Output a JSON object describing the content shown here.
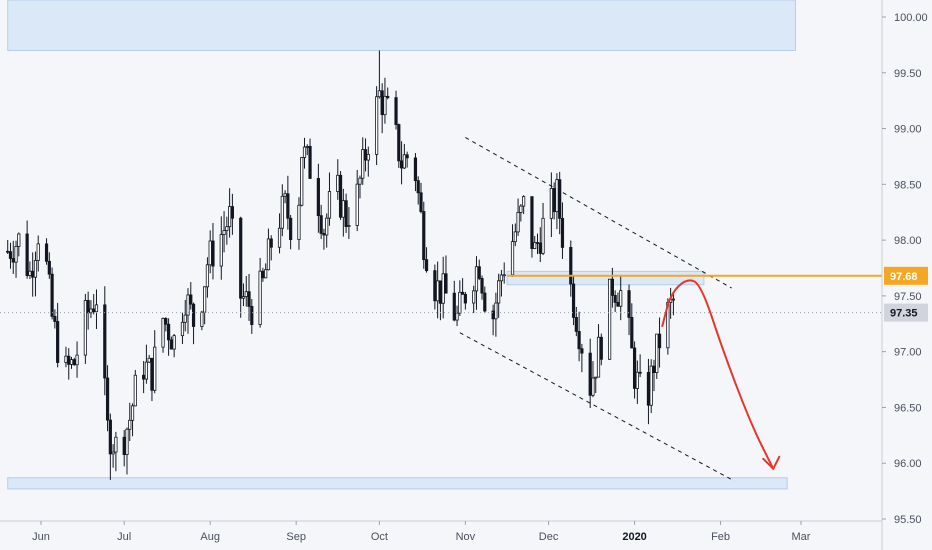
{
  "colors": {
    "background": "#f4f6f9",
    "zone_fill": "#dbe8f8",
    "zone_stroke": "#b5cde8",
    "candle": "#131722",
    "resistance": "#f5a623",
    "projection": "#e8352a",
    "current_tag": "#d1d4dc"
  },
  "chart_data": {
    "type": "candlestick",
    "title": "",
    "ylim": [
      95.5,
      100.2
    ],
    "y_ticks": [
      "100.00",
      "99.50",
      "99.00",
      "98.50",
      "98.00",
      "97.50",
      "97.00",
      "96.50",
      "96.00",
      "95.50"
    ],
    "y_tick_values": [
      100.0,
      99.5,
      99.0,
      98.5,
      98.0,
      97.5,
      97.0,
      96.5,
      96.0,
      95.5
    ],
    "x_months": [
      "Jun",
      "Jul",
      "Aug",
      "Sep",
      "Oct",
      "Nov",
      "Dec",
      "2020",
      "Feb",
      "Mar"
    ],
    "x_month_dates": [
      "2019-06-01",
      "2019-07-01",
      "2019-08-01",
      "2019-09-01",
      "2019-10-01",
      "2019-11-01",
      "2019-12-01",
      "2020-01-01",
      "2020-02-01",
      "2020-03-01"
    ],
    "x_range": [
      "2019-05-20",
      "2020-03-10"
    ],
    "price_path": [
      [
        "2019-05-20",
        97.9
      ],
      [
        "2019-05-24",
        98.0
      ],
      [
        "2019-05-28",
        97.7
      ],
      [
        "2019-06-01",
        98.2
      ],
      [
        "2019-06-05",
        97.3
      ],
      [
        "2019-06-09",
        96.8
      ],
      [
        "2019-06-13",
        96.9
      ],
      [
        "2019-06-17",
        97.3
      ],
      [
        "2019-06-21",
        97.5
      ],
      [
        "2019-06-25",
        96.3
      ],
      [
        "2019-06-29",
        96.1
      ],
      [
        "2019-07-03",
        96.4
      ],
      [
        "2019-07-07",
        96.9
      ],
      [
        "2019-07-11",
        96.8
      ],
      [
        "2019-07-15",
        97.3
      ],
      [
        "2019-07-19",
        97.1
      ],
      [
        "2019-07-23",
        97.5
      ],
      [
        "2019-07-27",
        97.2
      ],
      [
        "2019-07-31",
        97.8
      ],
      [
        "2019-08-04",
        98.0
      ],
      [
        "2019-08-08",
        98.2
      ],
      [
        "2019-08-12",
        97.5
      ],
      [
        "2019-08-16",
        97.4
      ],
      [
        "2019-08-20",
        97.6
      ],
      [
        "2019-08-24",
        98.1
      ],
      [
        "2019-08-28",
        98.3
      ],
      [
        "2019-09-01",
        98.0
      ],
      [
        "2019-09-03",
        98.8
      ],
      [
        "2019-09-07",
        98.6
      ],
      [
        "2019-09-11",
        98.1
      ],
      [
        "2019-09-15",
        98.5
      ],
      [
        "2019-09-19",
        98.2
      ],
      [
        "2019-09-23",
        98.4
      ],
      [
        "2019-09-27",
        98.9
      ],
      [
        "2019-10-01",
        99.3
      ],
      [
        "2019-10-05",
        99.1
      ],
      [
        "2019-10-09",
        98.7
      ],
      [
        "2019-10-13",
        98.8
      ],
      [
        "2019-10-17",
        98.0
      ],
      [
        "2019-10-21",
        97.6
      ],
      [
        "2019-10-25",
        97.5
      ],
      [
        "2019-10-29",
        97.3
      ],
      [
        "2019-11-02",
        97.6
      ],
      [
        "2019-11-06",
        97.8
      ],
      [
        "2019-11-10",
        97.2
      ],
      [
        "2019-11-14",
        97.7
      ],
      [
        "2019-11-18",
        98.0
      ],
      [
        "2019-11-22",
        98.3
      ],
      [
        "2019-11-26",
        97.9
      ],
      [
        "2019-11-30",
        98.2
      ],
      [
        "2019-12-04",
        98.4
      ],
      [
        "2019-12-08",
        97.7
      ],
      [
        "2019-12-12",
        97.2
      ],
      [
        "2019-12-16",
        96.7
      ],
      [
        "2019-12-20",
        97.1
      ],
      [
        "2019-12-24",
        97.6
      ],
      [
        "2019-12-28",
        97.5
      ],
      [
        "2020-01-01",
        96.8
      ],
      [
        "2020-01-05",
        96.5
      ],
      [
        "2020-01-08",
        96.9
      ],
      [
        "2020-01-12",
        97.3
      ],
      [
        "2020-01-15",
        97.45
      ]
    ],
    "high_low_extremes": [
      {
        "date": "2019-06-26",
        "low": 95.85
      },
      {
        "date": "2019-10-01",
        "high": 99.7
      },
      {
        "date": "2019-12-04",
        "high": 98.6
      },
      {
        "date": "2020-01-06",
        "low": 96.35
      }
    ],
    "zones": [
      {
        "name": "upper-supply-zone",
        "x_start": "2019-05-20",
        "x_end": "2020-02-28",
        "y_low": 99.7,
        "y_high": 100.4
      },
      {
        "name": "lower-demand-zone",
        "x_start": "2019-05-20",
        "x_end": "2020-02-25",
        "y_low": 95.77,
        "y_high": 95.87
      },
      {
        "name": "resistance-zone",
        "x_start": "2019-11-16",
        "x_end": "2020-01-26",
        "y_low": 97.6,
        "y_high": 97.72
      }
    ],
    "channel_upper": {
      "start": [
        "2019-11-01",
        98.92
      ],
      "end": [
        "2020-02-05",
        97.57
      ]
    },
    "channel_lower": {
      "start": [
        "2019-10-30",
        97.17
      ],
      "end": [
        "2020-02-06",
        95.84
      ]
    },
    "resistance_line": {
      "x_start": "2019-11-16",
      "price": 97.68,
      "label": "97.68"
    },
    "current_price": {
      "price": 97.35,
      "label": "97.35"
    },
    "projection_path": [
      [
        "2020-01-11",
        97.23
      ],
      [
        "2020-01-14",
        97.52
      ],
      [
        "2020-01-20",
        97.66
      ],
      [
        "2020-01-25",
        97.6
      ],
      [
        "2020-02-02",
        97.0
      ],
      [
        "2020-02-12",
        96.35
      ],
      [
        "2020-02-20",
        95.95
      ]
    ],
    "grid": false,
    "legend": "none"
  }
}
